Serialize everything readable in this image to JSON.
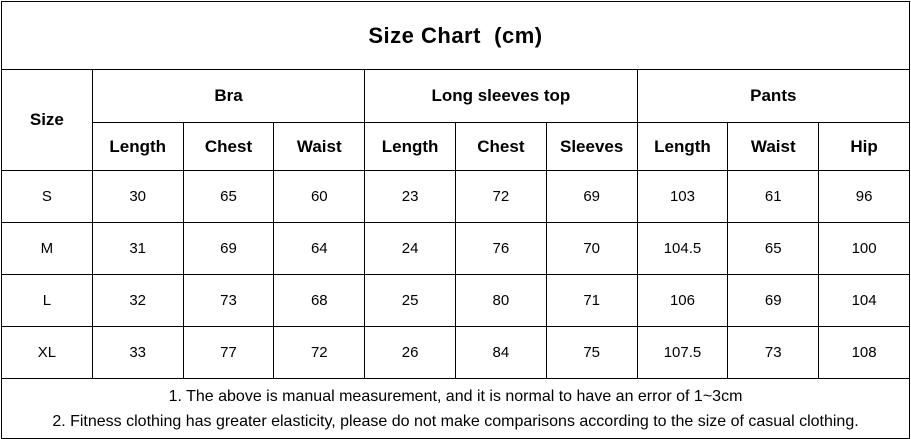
{
  "title": "Size Chart  (cm)",
  "table": {
    "size_header": "Size",
    "groups": [
      {
        "label": "Bra",
        "columns": [
          "Length",
          "Chest",
          "Waist"
        ]
      },
      {
        "label": "Long sleeves top",
        "columns": [
          "Length",
          "Chest",
          "Sleeves"
        ]
      },
      {
        "label": "Pants",
        "columns": [
          "Length",
          "Waist",
          "Hip"
        ]
      }
    ],
    "rows": [
      {
        "size": "S",
        "cells": [
          "30",
          "65",
          "60",
          "23",
          "72",
          "69",
          "103",
          "61",
          "96"
        ]
      },
      {
        "size": "M",
        "cells": [
          "31",
          "69",
          "64",
          "24",
          "76",
          "70",
          "104.5",
          "65",
          "100"
        ]
      },
      {
        "size": "L",
        "cells": [
          "32",
          "73",
          "68",
          "25",
          "80",
          "71",
          "106",
          "69",
          "104"
        ]
      },
      {
        "size": "XL",
        "cells": [
          "33",
          "77",
          "72",
          "26",
          "84",
          "75",
          "107.5",
          "73",
          "108"
        ]
      }
    ]
  },
  "notes": [
    "1. The above is manual measurement, and it is normal to have an error of 1~3cm",
    "2. Fitness clothing has greater elasticity, please do not make comparisons according to the size of casual clothing."
  ],
  "colors": {
    "border": "#000000",
    "text": "#000000",
    "background": "#ffffff"
  }
}
